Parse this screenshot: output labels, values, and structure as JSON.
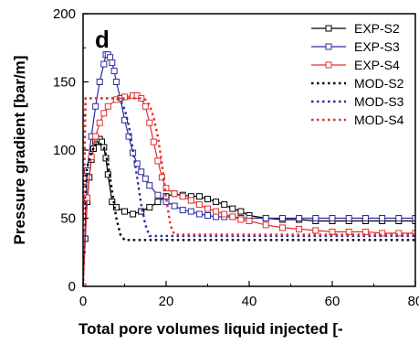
{
  "chart_data": {
    "type": "line",
    "panel_label": "d",
    "xlabel": "Total pore volumes liquid injected [-",
    "ylabel": "Pressure gradient [bar/m]",
    "xlim": [
      0,
      80
    ],
    "ylim": [
      0,
      200
    ],
    "xticks": [
      0,
      20,
      40,
      60,
      80
    ],
    "xtick_labels": [
      "0",
      "20",
      "40",
      "60",
      "80"
    ],
    "yticks": [
      0,
      50,
      100,
      150,
      200
    ],
    "ytick_labels": [
      "0",
      "50",
      "100",
      "150",
      "200"
    ],
    "grid": false,
    "legend_position": "top-right",
    "series": [
      {
        "name": "EXP-S2",
        "color": "#000000",
        "style": "solid",
        "marker": "square",
        "x": [
          0,
          0.5,
          1,
          1.5,
          2,
          2.5,
          3,
          3.5,
          4,
          4.5,
          5,
          5.5,
          6,
          7,
          8,
          10,
          12,
          14,
          16,
          18,
          20,
          22,
          24,
          26,
          28,
          30,
          32,
          34,
          36,
          38,
          40,
          44,
          48,
          52,
          56,
          60,
          64,
          68,
          72,
          76,
          80
        ],
        "y": [
          0,
          35,
          62,
          80,
          93,
          101,
          106,
          108,
          108,
          106,
          102,
          94,
          82,
          62,
          58,
          55,
          53,
          55,
          58,
          62,
          66,
          68,
          67,
          66,
          66,
          64,
          62,
          60,
          57,
          55,
          52,
          50,
          49,
          49,
          48,
          48,
          48,
          48,
          48,
          48,
          48
        ]
      },
      {
        "name": "EXP-S3",
        "color": "#2b2ba0",
        "style": "solid",
        "marker": "square",
        "x": [
          0,
          1,
          2,
          3,
          4,
          5,
          5.5,
          6,
          6.5,
          7,
          7.5,
          8,
          9,
          10,
          11,
          12,
          13,
          14,
          15,
          16,
          18,
          20,
          22,
          24,
          26,
          28,
          30,
          32,
          34,
          36,
          38,
          40,
          44,
          48,
          52,
          56,
          60,
          64,
          68,
          72,
          76,
          80
        ],
        "y": [
          0,
          85,
          110,
          132,
          150,
          163,
          170,
          170,
          168,
          164,
          158,
          150,
          138,
          122,
          110,
          98,
          90,
          84,
          79,
          74,
          67,
          62,
          59,
          56,
          55,
          53,
          52,
          51,
          51,
          51,
          50,
          50,
          50,
          50,
          50,
          50,
          50,
          50,
          50,
          50,
          50,
          50
        ]
      },
      {
        "name": "EXP-S4",
        "color": "#e03030",
        "style": "solid",
        "marker": "square",
        "x": [
          0,
          1,
          2,
          3,
          4,
          5,
          6,
          8,
          10,
          12,
          13,
          14,
          15,
          16,
          17,
          18,
          19,
          20,
          22,
          24,
          26,
          28,
          30,
          32,
          34,
          36,
          38,
          40,
          44,
          48,
          52,
          56,
          60,
          64,
          68,
          72,
          76,
          80
        ],
        "y": [
          0,
          65,
          95,
          110,
          120,
          127,
          132,
          137,
          139,
          140,
          140,
          138,
          132,
          120,
          106,
          92,
          80,
          72,
          68,
          66,
          63,
          60,
          57,
          55,
          53,
          51,
          49,
          48,
          45,
          43,
          42,
          41,
          40,
          40,
          40,
          39,
          39,
          39
        ]
      },
      {
        "name": "MOD-S2",
        "color": "#000000",
        "style": "dotted",
        "marker": "none",
        "x": [
          0,
          0.5,
          1,
          2,
          3,
          4,
          5,
          6,
          7,
          8,
          9,
          10,
          80
        ],
        "y": [
          0,
          70,
          88,
          98,
          104,
          105,
          102,
          90,
          70,
          50,
          38,
          34,
          34
        ]
      },
      {
        "name": "MOD-S3",
        "color": "#2b2ba0",
        "style": "dotted",
        "marker": "none",
        "x": [
          0,
          0.3,
          0.6,
          2,
          6,
          8,
          9,
          10,
          11,
          12,
          13,
          14,
          15,
          16,
          80
        ],
        "y": [
          0,
          90,
          138,
          138,
          138,
          138,
          136,
          130,
          118,
          100,
          80,
          60,
          45,
          37,
          37
        ]
      },
      {
        "name": "MOD-S4",
        "color": "#e03030",
        "style": "dotted",
        "marker": "none",
        "x": [
          0,
          0.3,
          0.6,
          2,
          10,
          14,
          15,
          16,
          17,
          18,
          19,
          20,
          21,
          22,
          80
        ],
        "y": [
          0,
          90,
          138,
          138,
          138,
          138,
          137,
          133,
          124,
          110,
          90,
          65,
          45,
          38,
          38
        ]
      }
    ]
  }
}
